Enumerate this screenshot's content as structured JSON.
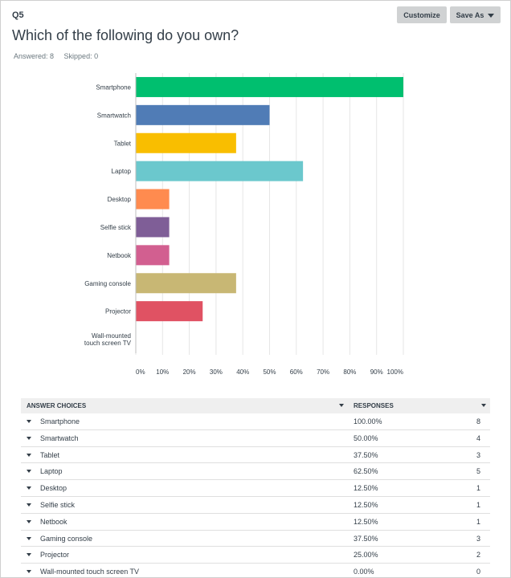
{
  "question": {
    "number": "Q5",
    "title": "Which of the following do you own?",
    "answered_label": "Answered: 8",
    "skipped_label": "Skipped: 0"
  },
  "toolbar": {
    "customize_label": "Customize",
    "save_as_label": "Save As"
  },
  "chart_data": {
    "type": "bar",
    "orientation": "horizontal",
    "categories": [
      "Smartphone",
      "Smartwatch",
      "Tablet",
      "Laptop",
      "Desktop",
      "Selfie stick",
      "Netbook",
      "Gaming console",
      "Projector",
      "Wall-mounted touch screen TV"
    ],
    "category_lines": [
      [
        "Smartphone"
      ],
      [
        "Smartwatch"
      ],
      [
        "Tablet"
      ],
      [
        "Laptop"
      ],
      [
        "Desktop"
      ],
      [
        "Selfie stick"
      ],
      [
        "Netbook"
      ],
      [
        "Gaming console"
      ],
      [
        "Projector"
      ],
      [
        "Wall-mounted",
        "touch screen TV"
      ]
    ],
    "values": [
      100,
      50,
      37.5,
      62.5,
      12.5,
      12.5,
      12.5,
      37.5,
      25,
      0
    ],
    "colors": [
      "#00bf6f",
      "#507cb6",
      "#f9be00",
      "#6bc8cd",
      "#ff8b4f",
      "#7f5e97",
      "#d25f90",
      "#c8b774",
      "#e05263",
      "#a7a7a7"
    ],
    "xlim": [
      0,
      100
    ],
    "x_ticks": [
      "0%",
      "10%",
      "20%",
      "30%",
      "40%",
      "50%",
      "60%",
      "70%",
      "80%",
      "90%",
      "100%"
    ],
    "grid": true,
    "title": "",
    "xlabel": "",
    "ylabel": ""
  },
  "table": {
    "header_choices": "ANSWER CHOICES",
    "header_responses": "RESPONSES",
    "rows": [
      {
        "label": "Smartphone",
        "pct": "100.00%",
        "count": "8"
      },
      {
        "label": "Smartwatch",
        "pct": "50.00%",
        "count": "4"
      },
      {
        "label": "Tablet",
        "pct": "37.50%",
        "count": "3"
      },
      {
        "label": "Laptop",
        "pct": "62.50%",
        "count": "5"
      },
      {
        "label": "Desktop",
        "pct": "12.50%",
        "count": "1"
      },
      {
        "label": "Selfie stick",
        "pct": "12.50%",
        "count": "1"
      },
      {
        "label": "Netbook",
        "pct": "12.50%",
        "count": "1"
      },
      {
        "label": "Gaming console",
        "pct": "37.50%",
        "count": "3"
      },
      {
        "label": "Projector",
        "pct": "25.00%",
        "count": "2"
      },
      {
        "label": "Wall-mounted touch screen TV",
        "pct": "0.00%",
        "count": "0"
      }
    ]
  }
}
